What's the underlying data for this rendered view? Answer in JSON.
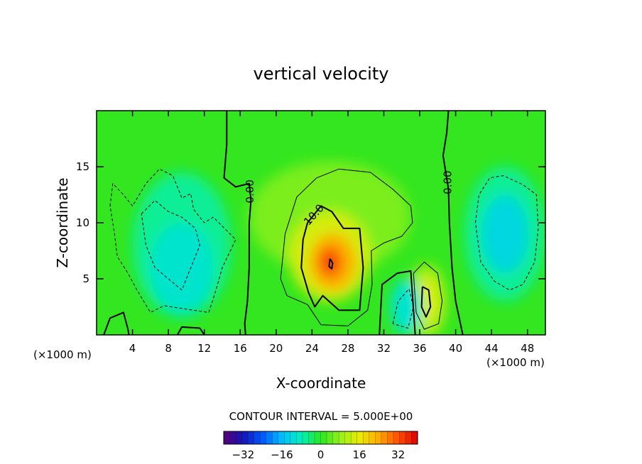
{
  "chart_data": {
    "type": "heatmap",
    "title": "vertical velocity",
    "xlabel": "X-coordinate",
    "ylabel": "Z-coordinate",
    "x_unit": "(×1000 m)",
    "xlim": [
      0,
      50
    ],
    "ylim": [
      0,
      20
    ],
    "x_ticks": [
      "4",
      "8",
      "12",
      "16",
      "20",
      "24",
      "28",
      "32",
      "36",
      "40",
      "44",
      "48"
    ],
    "y_ticks": [
      "5",
      "10",
      "15"
    ],
    "contour_interval_text": "CONTOUR INTERVAL = 5.000E+00",
    "contour_labels": [
      "0.00",
      "10.0",
      "0.00"
    ],
    "colorbar": {
      "range": [
        -40,
        40
      ],
      "tick_labels": [
        "−32",
        "−16",
        "0",
        "16",
        "32"
      ]
    },
    "grid": false,
    "features": [
      {
        "x": 26,
        "z": 6.5,
        "value": 34,
        "shape": "updraft core"
      },
      {
        "x": 36.8,
        "z": 3.0,
        "value": 15,
        "shape": "updraft"
      },
      {
        "x": 9.5,
        "z": 7.5,
        "value": -12,
        "shape": "downdraft"
      },
      {
        "x": 45.5,
        "z": 9.0,
        "value": -12,
        "shape": "downdraft"
      },
      {
        "x": 34.5,
        "z": 2.5,
        "value": -10,
        "shape": "downdraft"
      }
    ]
  }
}
